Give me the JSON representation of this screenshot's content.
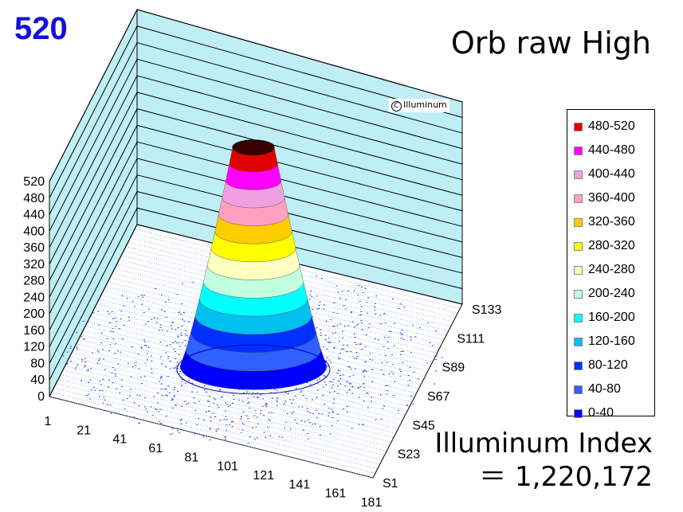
{
  "peak_value": "520",
  "title": "Orb raw High",
  "watermark": "Illuminum",
  "index_label": "Illuminum Index",
  "index_value": "＝ 1,220,172",
  "chart_data": {
    "type": "surface3d",
    "title": "Orb raw High",
    "z_ticks": [
      "0",
      "40",
      "80",
      "120",
      "160",
      "200",
      "240",
      "280",
      "320",
      "360",
      "400",
      "440",
      "480",
      "520"
    ],
    "zlim": [
      0,
      520
    ],
    "x_ticks": [
      "1",
      "21",
      "41",
      "61",
      "81",
      "101",
      "121",
      "141",
      "161",
      "181"
    ],
    "y_ticks": [
      "S1",
      "S23",
      "S45",
      "S67",
      "S89",
      "S111",
      "S133"
    ],
    "peak": 520,
    "index": 1220172,
    "bands": [
      {
        "range": "480-520",
        "color": "#e00000"
      },
      {
        "range": "440-480",
        "color": "#ff00ff"
      },
      {
        "range": "400-440",
        "color": "#f0a0e0"
      },
      {
        "range": "360-400",
        "color": "#ffa0c0"
      },
      {
        "range": "320-360",
        "color": "#ffcc00"
      },
      {
        "range": "280-320",
        "color": "#ffff00"
      },
      {
        "range": "240-280",
        "color": "#ffffc0"
      },
      {
        "range": "200-240",
        "color": "#c0ffe0"
      },
      {
        "range": "160-200",
        "color": "#00ffff"
      },
      {
        "range": "120-160",
        "color": "#00c0f0"
      },
      {
        "range": "80-120",
        "color": "#0030ff"
      },
      {
        "range": "40-80",
        "color": "#3060ff"
      },
      {
        "range": "0-40",
        "color": "#0000ff"
      }
    ],
    "legend_position": "right"
  }
}
